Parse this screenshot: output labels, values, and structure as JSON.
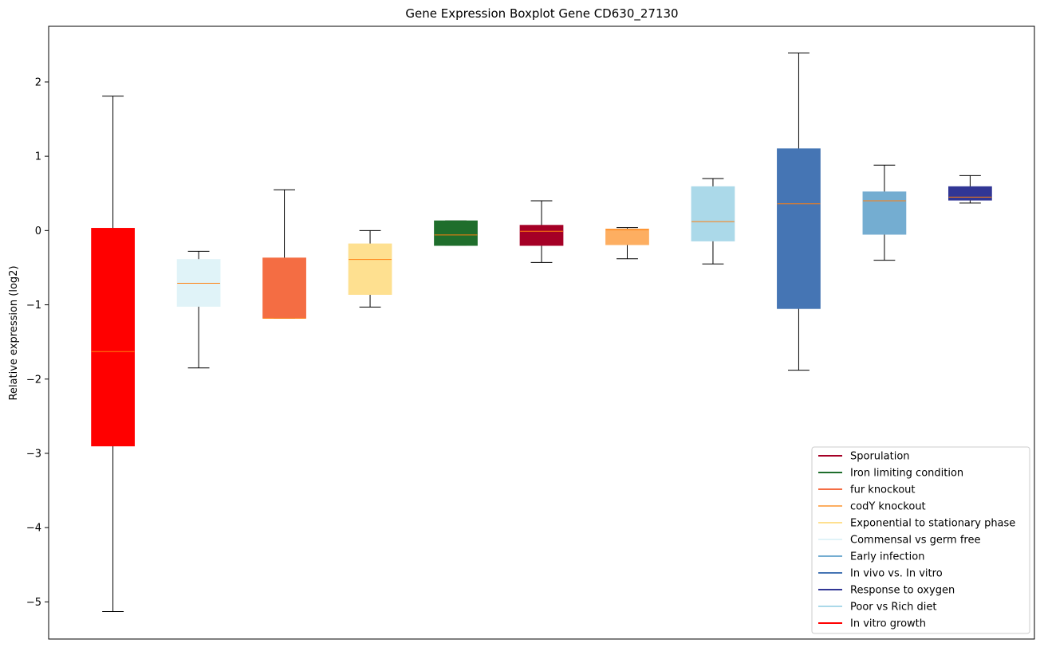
{
  "chart_data": {
    "type": "boxplot",
    "title": "Gene Expression Boxplot Gene CD630_27130",
    "xlabel": "",
    "ylabel": "Relative expression (log2)",
    "ylim": [
      -5.5,
      2.75
    ],
    "yticks": [
      2,
      1,
      0,
      -1,
      -2,
      -3,
      -4,
      -5
    ],
    "ytick_labels": [
      "2",
      "1",
      "0",
      "−1",
      "−2",
      "−3",
      "−4",
      "−5"
    ],
    "grid": false,
    "legend_position": "bottom-right",
    "median_color": "#ff7f0e",
    "whisker_color": "#000000",
    "boxes": [
      {
        "name": "In vitro growth",
        "color": "#ff0000",
        "whislo": -5.13,
        "q1": -2.9,
        "med": -1.63,
        "q3": 0.03,
        "whishi": 1.81
      },
      {
        "name": "Commensal vs germ free",
        "color": "#e0f3f8",
        "whislo": -1.85,
        "q1": -1.02,
        "med": -0.71,
        "q3": -0.39,
        "whishi": -0.28
      },
      {
        "name": "fur knockout",
        "color": "#f46d43",
        "whislo": -1.18,
        "q1": -1.18,
        "med": -1.18,
        "q3": -0.37,
        "whishi": 0.55
      },
      {
        "name": "Exponential to stationary phase",
        "color": "#fee090",
        "whislo": -1.03,
        "q1": -0.86,
        "med": -0.39,
        "q3": -0.18,
        "whishi": 0.0
      },
      {
        "name": "Iron limiting condition",
        "color": "#1f6e2c",
        "whislo": -0.2,
        "q1": -0.2,
        "med": -0.06,
        "q3": 0.13,
        "whishi": 0.13
      },
      {
        "name": "Sporulation",
        "color": "#a50026",
        "whislo": -0.43,
        "q1": -0.2,
        "med": -0.01,
        "q3": 0.07,
        "whishi": 0.4
      },
      {
        "name": "codY knockout",
        "color": "#fdae61",
        "whislo": -0.38,
        "q1": -0.19,
        "med": 0.01,
        "q3": 0.02,
        "whishi": 0.04
      },
      {
        "name": "Poor vs Rich diet",
        "color": "#abd9e9",
        "whislo": -0.45,
        "q1": -0.14,
        "med": 0.12,
        "q3": 0.59,
        "whishi": 0.7
      },
      {
        "name": "In vivo vs. In vitro",
        "color": "#4575b4",
        "whislo": -1.88,
        "q1": -1.05,
        "med": 0.36,
        "q3": 1.1,
        "whishi": 2.39
      },
      {
        "name": "Early infection",
        "color": "#74add1",
        "whislo": -0.4,
        "q1": -0.05,
        "med": 0.4,
        "q3": 0.52,
        "whishi": 0.88
      },
      {
        "name": "Response to oxygen",
        "color": "#313695",
        "whislo": 0.37,
        "q1": 0.41,
        "med": 0.45,
        "q3": 0.59,
        "whishi": 0.74
      }
    ],
    "legend": [
      {
        "label": "Sporulation",
        "color": "#a50026"
      },
      {
        "label": "Iron limiting condition",
        "color": "#1f6e2c"
      },
      {
        "label": "fur knockout",
        "color": "#f46d43"
      },
      {
        "label": "codY knockout",
        "color": "#fdae61"
      },
      {
        "label": "Exponential to stationary phase",
        "color": "#fee090"
      },
      {
        "label": "Commensal vs germ free",
        "color": "#e0f3f8"
      },
      {
        "label": "Early infection",
        "color": "#74add1"
      },
      {
        "label": "In vivo vs. In vitro",
        "color": "#4575b4"
      },
      {
        "label": "Response to oxygen",
        "color": "#313695"
      },
      {
        "label": "Poor vs Rich diet",
        "color": "#abd9e9"
      },
      {
        "label": "In vitro growth",
        "color": "#ff0000"
      }
    ]
  }
}
